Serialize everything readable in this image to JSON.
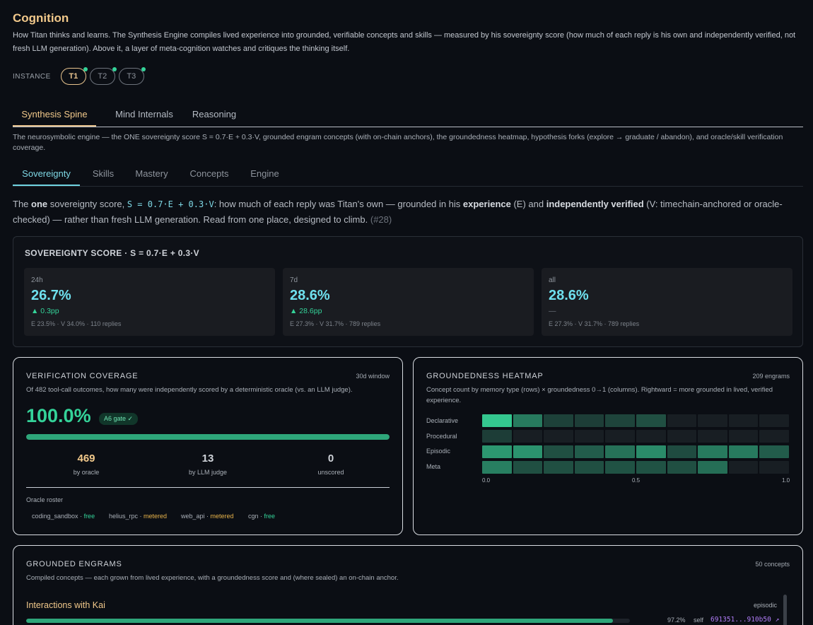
{
  "page": {
    "title": "Cognition",
    "subtitle": "How Titan thinks and learns. The Synthesis Engine compiles lived experience into grounded, verifiable concepts and skills — measured by his sovereignty score (how much of each reply is his own and independently verified, not fresh LLM generation). Above it, a layer of meta-cognition watches and critiques the thinking itself."
  },
  "instance": {
    "label": "INSTANCE",
    "options": [
      "T1",
      "T2",
      "T3"
    ],
    "selected": "T1",
    "status_color": "#34d399"
  },
  "main_tabs": {
    "items": [
      "Synthesis Spine",
      "Mind Internals",
      "Reasoning"
    ],
    "active": "Synthesis Spine"
  },
  "engine_description": "The neurosymbolic engine — the ONE sovereignty score S = 0.7·E + 0.3·V, grounded engram concepts (with on-chain anchors), the groundedness heatmap, hypothesis forks (explore → graduate / abandon), and oracle/skill verification coverage.",
  "sub_tabs": {
    "items": [
      "Sovereignty",
      "Skills",
      "Mastery",
      "Concepts",
      "Engine"
    ],
    "active": "Sovereignty"
  },
  "intro": {
    "p1": "The ",
    "b1": "one",
    "p2": " sovereignty score, ",
    "formula": "S = 0.7·E + 0.3·V",
    "p3": ": how much of each reply was Titan's own — grounded in his ",
    "b2": "experience",
    "p4": " (E) and ",
    "b3": "independently verified",
    "p5": " (V: timechain-anchored or oracle-checked) — rather than fresh LLM generation. Read from one place, designed to climb.",
    "ref": "(#28)"
  },
  "sovereignty": {
    "title": "SOVEREIGNTY SCORE · S = 0.7·E + 0.3·V",
    "cards": [
      {
        "period": "24h",
        "value": "26.7%",
        "delta": "▲ 0.3pp",
        "meta": "E 23.5% · V 34.0% · 110 replies"
      },
      {
        "period": "7d",
        "value": "28.6%",
        "delta": "▲ 28.6pp",
        "meta": "E 27.3% · V 31.7% · 789 replies"
      },
      {
        "period": "all",
        "value": "28.6%",
        "delta": "—",
        "meta": "E 27.3% · V 31.7% · 789 replies"
      }
    ]
  },
  "verification": {
    "title": "VERIFICATION COVERAGE",
    "window": "30d window",
    "description": "Of 482 tool-call outcomes, how many were independently scored by a deterministic oracle (vs. an LLM judge).",
    "coverage": "100.0%",
    "coverage_fraction": 1.0,
    "gate": "A6 gate ✓",
    "stats": [
      {
        "value": "469",
        "label": "by oracle"
      },
      {
        "value": "13",
        "label": "by LLM judge"
      },
      {
        "value": "0",
        "label": "unscored"
      }
    ],
    "roster_label": "Oracle roster",
    "roster": [
      {
        "name": "coding_sandbox",
        "sep": " · ",
        "tier": "free"
      },
      {
        "name": "helius_rpc",
        "sep": " · ",
        "tier": "metered"
      },
      {
        "name": "web_api",
        "sep": " · ",
        "tier": "metered"
      },
      {
        "name": "cgn",
        "sep": " · ",
        "tier": "free"
      }
    ]
  },
  "heatmap": {
    "title": "GROUNDEDNESS HEATMAP",
    "count": "209 engrams",
    "description": "Concept count by memory type (rows) × groundedness 0→1 (columns). Rightward = more grounded in lived, verified experience.",
    "rows": [
      "Declarative",
      "Procedural",
      "Episodic",
      "Meta"
    ],
    "axis_labels": [
      "0.0",
      "0.5",
      "1.0"
    ],
    "intensity": [
      [
        1.0,
        0.55,
        0.22,
        0.2,
        0.24,
        0.3,
        0.02,
        0.02,
        0.02,
        0.02
      ],
      [
        0.2,
        0.02,
        0.02,
        0.02,
        0.02,
        0.02,
        0.02,
        0.02,
        0.02,
        0.02
      ],
      [
        0.72,
        0.7,
        0.3,
        0.38,
        0.5,
        0.65,
        0.28,
        0.55,
        0.55,
        0.38
      ],
      [
        0.58,
        0.3,
        0.3,
        0.3,
        0.32,
        0.32,
        0.3,
        0.48,
        0.02,
        0.02
      ]
    ]
  },
  "engrams": {
    "title": "GROUNDED ENGRAMS",
    "count": "50 concepts",
    "description": "Compiled concepts — each grown from lived experience, with a groundedness score and (where sealed) an on-chain anchor.",
    "items": [
      {
        "name": "Interactions with Kai",
        "type": "episodic",
        "score": "97.2%",
        "score_fraction": 0.972,
        "source": "self",
        "anchor": "691351...910b50 ↗"
      }
    ]
  }
}
